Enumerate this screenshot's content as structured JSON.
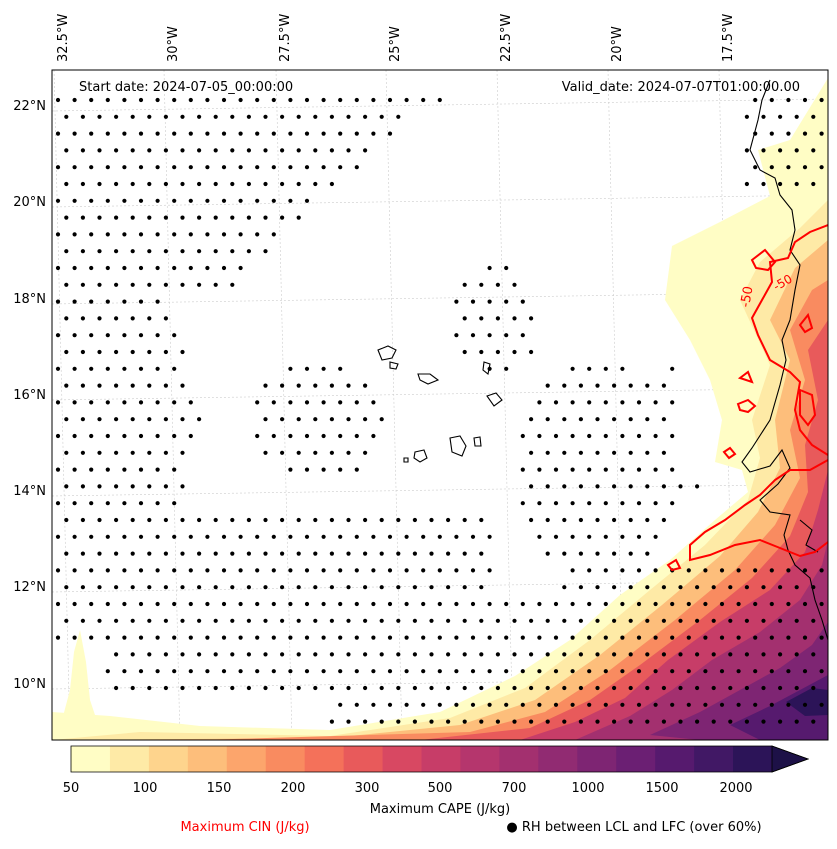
{
  "map": {
    "start_label": "Start date: 2024-07-05_00:00:00",
    "valid_label": "Valid_date: 2024-07-07T01:00:00.00",
    "lon_labels": [
      "32.5°W",
      "30°W",
      "27.5°W",
      "25°W",
      "22.5°W",
      "20°W",
      "17.5°W"
    ],
    "lat_labels": [
      "22°N",
      "20°N",
      "18°N",
      "16°N",
      "14°N",
      "12°N",
      "10°N"
    ],
    "contour_labels": [
      "-50",
      "-50"
    ]
  },
  "colorbar": {
    "ticks": [
      "50",
      "100",
      "150",
      "200",
      "300",
      "500",
      "700",
      "1000",
      "1500",
      "2000"
    ],
    "colors": [
      "#fffdc5",
      "#feeaa6",
      "#fed48d",
      "#fdbe7b",
      "#fca56c",
      "#f98b60",
      "#f4715a",
      "#e85a5b",
      "#d84862",
      "#c73d68",
      "#b5366d",
      "#a3306f",
      "#912b72",
      "#7e2573",
      "#6b1f73",
      "#561a6e",
      "#411865",
      "#2c1458",
      "#1d1147"
    ],
    "title": "Maximum CAPE (J/kg)"
  },
  "legend": {
    "cin_label": "Maximum CIN (J/kg)",
    "cin_color": "#ff0000",
    "rh_label": "● RH between LCL and LFC (over 60%)"
  }
}
